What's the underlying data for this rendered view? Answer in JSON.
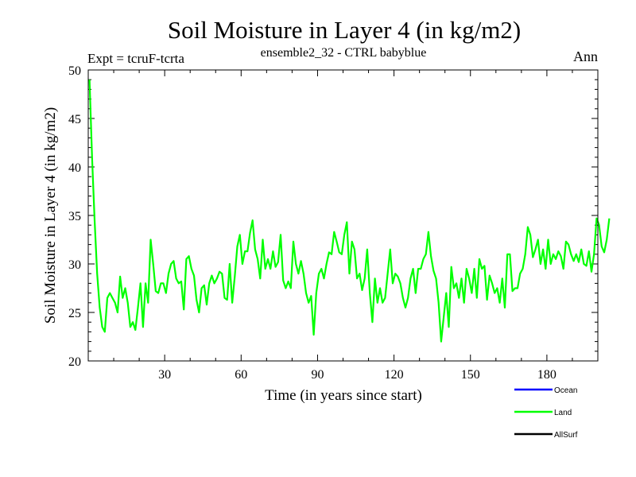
{
  "chart_data": {
    "type": "line",
    "title": "Soil Moisture in Layer 4 (in kg/m2)",
    "subtitle": "ensemble2_32 - CTRL babyblue",
    "left_label": "Expt = tcruF-tcrta",
    "right_label": "Ann",
    "xlabel": "Time (in years since start)",
    "ylabel": "Soil Moisture in Layer 4 (in kg/m2)",
    "xlim": [
      0,
      200
    ],
    "ylim": [
      20,
      50
    ],
    "xticks": [
      30,
      60,
      90,
      120,
      150,
      180
    ],
    "yticks": [
      20,
      25,
      30,
      35,
      40,
      45,
      50
    ],
    "grid": false,
    "legend_position": "bottom-right",
    "series": [
      {
        "name": "Ocean",
        "color": "#0000ff",
        "values": []
      },
      {
        "name": "Land",
        "color": "#00ff00",
        "x_start": 0.5,
        "x_step": 1,
        "values": [
          49,
          41,
          34.5,
          29,
          25.5,
          23.5,
          23,
          26.5,
          27,
          26.5,
          26,
          25,
          28.7,
          26.5,
          27.5,
          26,
          23.5,
          24,
          23.2,
          25.5,
          28,
          23.5,
          28,
          26,
          32.5,
          30,
          27.2,
          27,
          28,
          28,
          27,
          29,
          30,
          30.3,
          28.5,
          28,
          28.2,
          25.3,
          30.5,
          30.8,
          29.5,
          28.8,
          26.3,
          25,
          27.5,
          27.8,
          25.8,
          28,
          28.8,
          28,
          28.5,
          29.2,
          29,
          26.5,
          26.3,
          30,
          26,
          28.7,
          31.8,
          33,
          30,
          31.3,
          31.3,
          33.2,
          34.5,
          31.5,
          30.5,
          28.5,
          32.5,
          29.5,
          30.5,
          29.5,
          31.3,
          29.7,
          30.2,
          33,
          28.3,
          27.5,
          28.2,
          27.5,
          32.3,
          30,
          29,
          30.3,
          29,
          27,
          26,
          26.7,
          22.7,
          27,
          29,
          29.5,
          28.5,
          30,
          31.2,
          31,
          33.3,
          32.3,
          31.2,
          31,
          33,
          34.3,
          29,
          32.3,
          31.5,
          28.5,
          29,
          27.3,
          28.5,
          31.5,
          27,
          24,
          28.5,
          26,
          27.5,
          26,
          26.5,
          29,
          31.5,
          28,
          29,
          28.7,
          28,
          26.5,
          25.5,
          26.5,
          28.5,
          29.5,
          27,
          29.5,
          29.5,
          30.5,
          31,
          33.3,
          30.8,
          29.3,
          28.5,
          26,
          22,
          24.5,
          27,
          23.5,
          29.7,
          27.5,
          28,
          26.5,
          28.5,
          26,
          29.5,
          28.5,
          27,
          29.5,
          26.5,
          30.5,
          29.5,
          29.8,
          26.3,
          28.8,
          28,
          27,
          27.5,
          26,
          28.5,
          25.5,
          31,
          31,
          27.2,
          27.5,
          27.5,
          29,
          29.5,
          31,
          33.8,
          33,
          30.7,
          31.5,
          32.5,
          30,
          31.5,
          29.5,
          32.5,
          30,
          31,
          30.5,
          31.3,
          30.8,
          29.5,
          32.3,
          32,
          31,
          30.3,
          31,
          30.2,
          31.5,
          30,
          29.8,
          31.3,
          29.2,
          31,
          34.7,
          34,
          31.8,
          31.2,
          32.5,
          34.7
        ]
      },
      {
        "name": "AllSurf",
        "color": "#000000",
        "values": []
      }
    ]
  }
}
